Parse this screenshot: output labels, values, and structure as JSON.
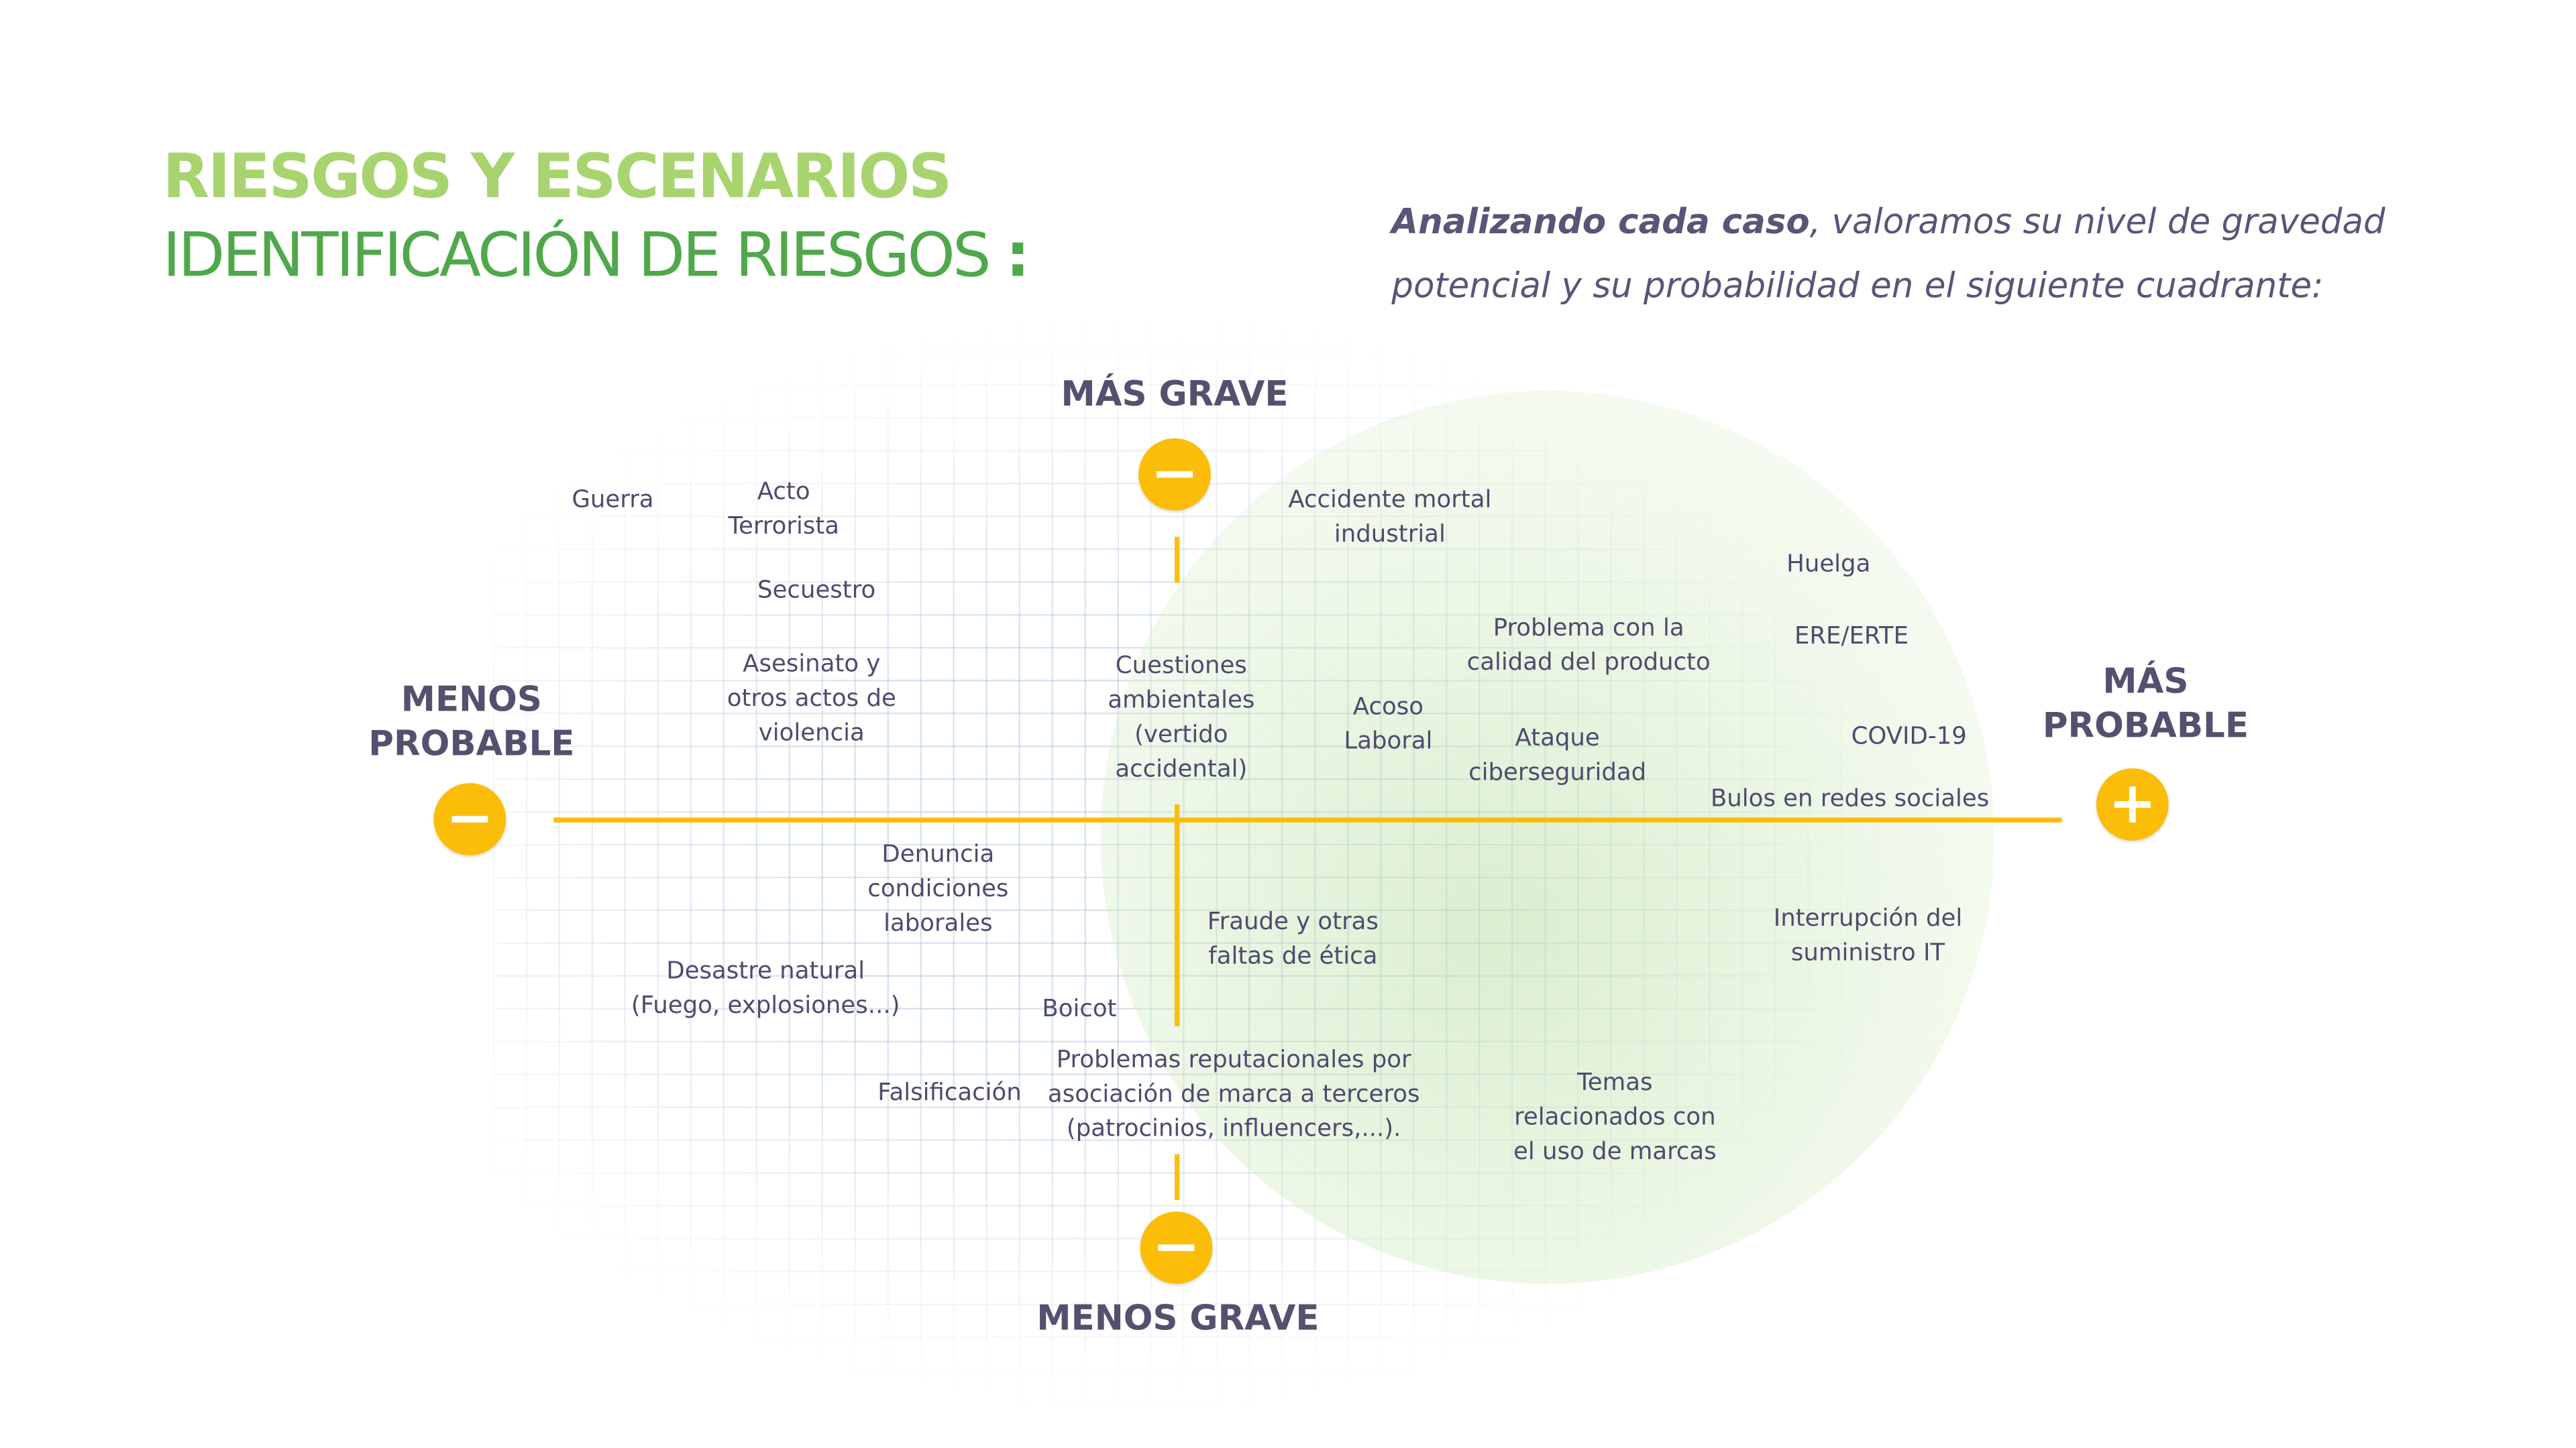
{
  "header": {
    "title_line1": "RIESGOS Y ESCENARIOS",
    "title_line2": "IDENTIFICACIÓN DE RIESGOS",
    "title_colon": ":"
  },
  "intro": {
    "bold": "Analizando cada caso",
    "rest": ", valoramos su nivel de gravedad potencial y su probabilidad en el siguiente cuadrante:"
  },
  "colors": {
    "title_light": "#a8d46f",
    "title_dark": "#4fa84a",
    "text": "#4f4a6e",
    "axis": "#fbbd08"
  },
  "axes": {
    "top": {
      "label": "MÁS GRAVE",
      "icon": "minus-icon"
    },
    "bottom": {
      "label": "MENOS GRAVE",
      "icon": "minus-icon"
    },
    "left": {
      "label": "MENOS\nPROBABLE",
      "icon": "minus-icon"
    },
    "right": {
      "label": "MÁS\nPROBABLE",
      "icon": "plus-icon"
    }
  },
  "risks": [
    {
      "label": "Guerra"
    },
    {
      "label": "Acto\nTerrorista"
    },
    {
      "label": "Secuestro"
    },
    {
      "label": "Asesinato y\notros actos de\nviolencia"
    },
    {
      "label": "Cuestiones\nambientales\n(vertido\naccidental)"
    },
    {
      "label": "Accidente mortal\nindustrial"
    },
    {
      "label": "Huelga"
    },
    {
      "label": "Problema con la\ncalidad del producto"
    },
    {
      "label": "ERE/ERTE"
    },
    {
      "label": "Acoso\nLaboral"
    },
    {
      "label": "Ataque\nciberseguridad"
    },
    {
      "label": "COVID-19"
    },
    {
      "label": "Bulos en redes sociales"
    },
    {
      "label": "Denuncia\ncondiciones\nlaborales"
    },
    {
      "label": "Fraude y otras\nfaltas de ética"
    },
    {
      "label": "Interrupción del\nsuministro IT"
    },
    {
      "label": "Desastre natural\n(Fuego, explosiones...)"
    },
    {
      "label": "Boicot"
    },
    {
      "label": "Problemas reputacionales por\nasociación de marca a terceros\n(patrocinios, influencers,...)."
    },
    {
      "label": "Falsificación"
    },
    {
      "label": "Temas\nrelacionados con\nel uso de marcas"
    }
  ]
}
